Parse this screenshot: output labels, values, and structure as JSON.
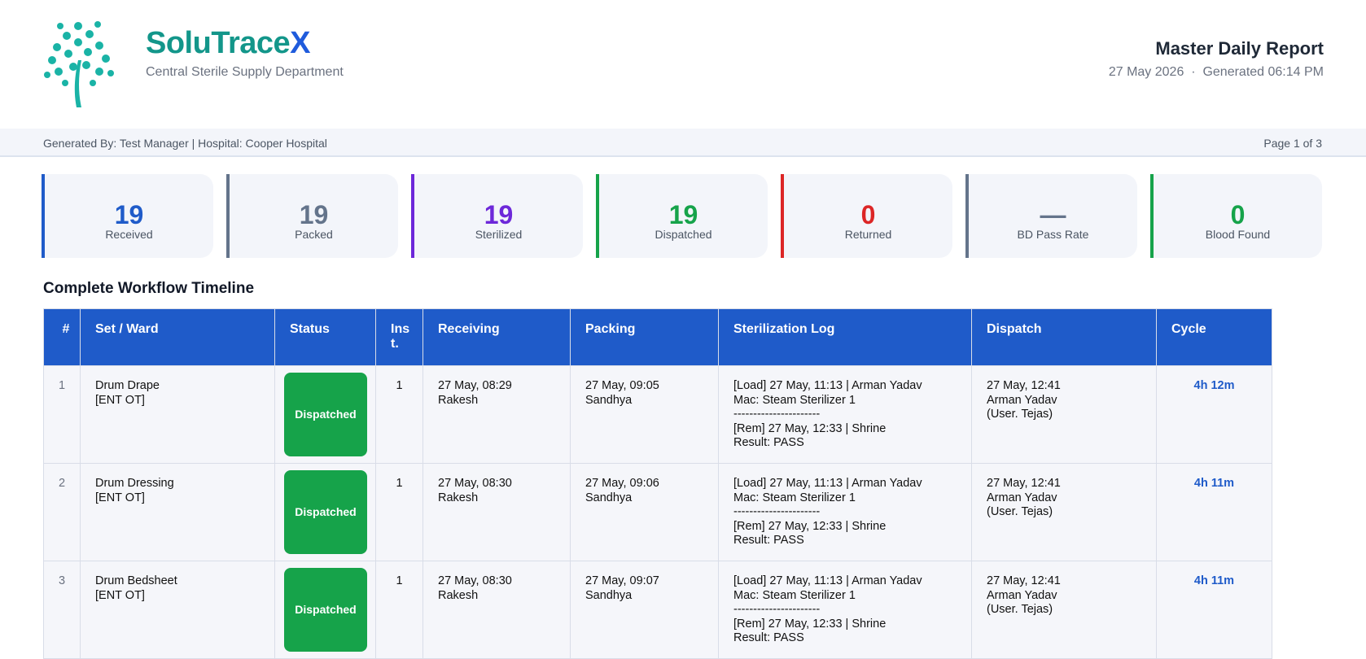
{
  "header": {
    "brand": "SoluTrace",
    "brand_accent": "X",
    "subtitle": "Central Sterile Supply Department",
    "report_title": "Master Daily Report",
    "date": "27 May 2026",
    "separator": "·",
    "generated": "Generated 06:14 PM"
  },
  "info_bar": {
    "generated_by": "Generated By: Test Manager | Hospital: Cooper Hospital",
    "page": "Page 1 of 3"
  },
  "stats": [
    {
      "value": 19,
      "label": "Received",
      "color": "#1f5bc9"
    },
    {
      "value": 19,
      "label": "Packed",
      "color": "#64748b"
    },
    {
      "value": 19,
      "label": "Sterilized",
      "color": "#6d28d9"
    },
    {
      "value": 19,
      "label": "Dispatched",
      "color": "#16a34a"
    },
    {
      "value": 0,
      "label": "Returned",
      "color": "#dc2626"
    },
    {
      "value": "—",
      "label": "BD Pass Rate",
      "color": "#64748b"
    },
    {
      "value": 0,
      "label": "Blood Found",
      "color": "#16a34a"
    }
  ],
  "section_title": "Complete Workflow Timeline",
  "table": {
    "columns": [
      "#",
      "Set / Ward",
      "Status",
      "Inst.",
      "Receiving",
      "Packing",
      "Sterilization Log",
      "Dispatch",
      "Cycle"
    ],
    "rows": [
      [
        1,
        "Drum Drape\n[ENT OT]",
        "Dispatched",
        1,
        "27 May, 08:29\nRakesh",
        "27 May, 09:05\nSandhya",
        "[Load] 27 May, 11:13 | Arman Yadav\nMac: Steam Sterilizer 1\n----------------------\n[Rem] 27 May, 12:33 | Shrine\nResult: PASS",
        "27 May, 12:41\nArman Yadav\n(User. Tejas)",
        "4h 12m"
      ],
      [
        2,
        "Drum Dressing\n[ENT OT]",
        "Dispatched",
        1,
        "27 May, 08:30\nRakesh",
        "27 May, 09:06\nSandhya",
        "[Load] 27 May, 11:13 | Arman Yadav\nMac: Steam Sterilizer 1\n----------------------\n[Rem] 27 May, 12:33 | Shrine\nResult: PASS",
        "27 May, 12:41\nArman Yadav\n(User. Tejas)",
        "4h 11m"
      ],
      [
        3,
        "Drum Bedsheet\n[ENT OT]",
        "Dispatched",
        1,
        "27 May, 08:30\nRakesh",
        "27 May, 09:07\nSandhya",
        "[Load] 27 May, 11:13 | Arman Yadav\nMac: Steam Sterilizer 1\n----------------------\n[Rem] 27 May, 12:33 | Shrine\nResult: PASS",
        "27 May, 12:41\nArman Yadav\n(User. Tejas)",
        "4h 11m"
      ]
    ]
  }
}
